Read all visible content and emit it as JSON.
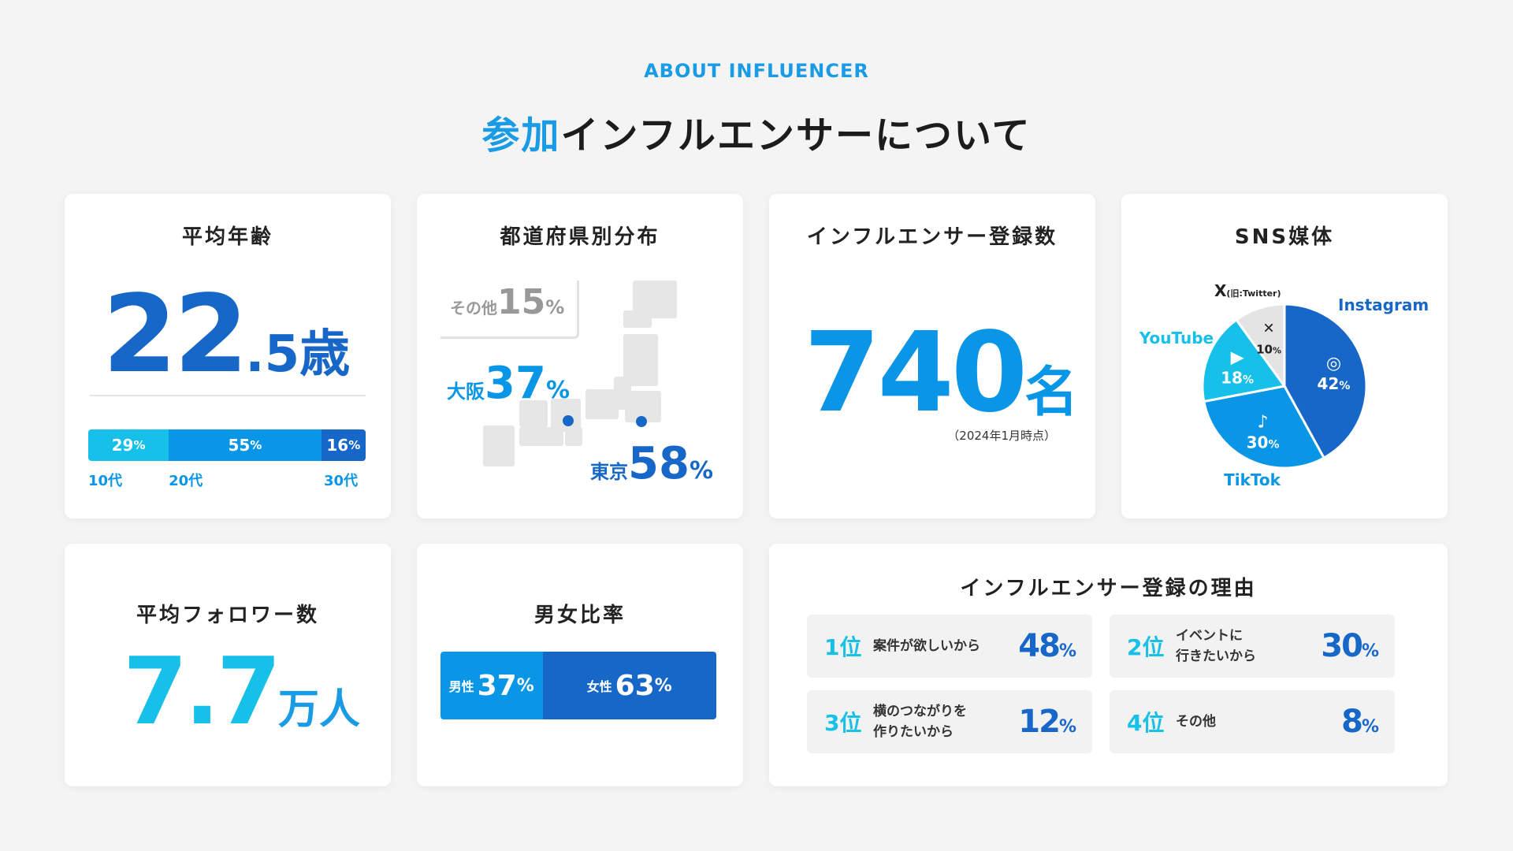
{
  "header": {
    "eyebrow": "ABOUT INFLUENCER",
    "title_accent": "参加",
    "title_rest": "インフルエンサーについて"
  },
  "age_card": {
    "title": "平均年齢",
    "value_int": "22",
    "value_dec": ".5",
    "unit": "歳",
    "segments": [
      {
        "pct": "29",
        "unit": "%",
        "label": "10代",
        "share": 29,
        "color": "#16c0e8"
      },
      {
        "pct": "55",
        "unit": "%",
        "label": "20代",
        "share": 55,
        "color": "#0a96e6"
      },
      {
        "pct": "16",
        "unit": "%",
        "label": "30代",
        "share": 16,
        "color": "#1767c9"
      }
    ]
  },
  "pref_card": {
    "title": "都道府県別分布",
    "other_label": "その他",
    "other_value": "15",
    "osaka_label": "大阪",
    "osaka_value": "37",
    "tokyo_label": "東京",
    "tokyo_value": "58",
    "unit": "%"
  },
  "count_card": {
    "title": "インフルエンサー登録数",
    "value": "740",
    "unit": "名",
    "note": "（2024年1月時点）"
  },
  "sns_card": {
    "title": "SNS媒体",
    "chart_data": {
      "type": "pie",
      "slices": [
        {
          "name": "Instagram",
          "value": 42,
          "icon": "instagram-icon",
          "color": "#1767c9",
          "label_color": "#1767c9"
        },
        {
          "name": "TikTok",
          "value": 30,
          "icon": "tiktok-icon",
          "color": "#0a96e6",
          "label_color": "#0a96e6"
        },
        {
          "name": "YouTube",
          "value": 18,
          "icon": "youtube-icon",
          "color": "#16c0e8",
          "label_color": "#16c0e8"
        },
        {
          "name": "X",
          "value": 10,
          "icon": "x-icon",
          "color": "#e4e4e4",
          "label_color": "#222222"
        }
      ],
      "x_sub": "(旧:Twitter)",
      "unit": "%"
    }
  },
  "follow_card": {
    "title": "平均フォロワー数",
    "value": "7.7",
    "unit": "万人"
  },
  "gender_card": {
    "title": "男女比率",
    "male_label": "男性",
    "male_value": "37",
    "male_share": 37,
    "female_label": "女性",
    "female_value": "63",
    "female_share": 63,
    "unit": "%"
  },
  "reason_card": {
    "title": "インフルエンサー登録の理由",
    "items": [
      {
        "rank": "1位",
        "text": "案件が欲しいから",
        "value": "48",
        "unit": "%"
      },
      {
        "rank": "2位",
        "text": "イベントに\n行きたいから",
        "value": "30",
        "unit": "%"
      },
      {
        "rank": "3位",
        "text": "横のつながりを\n作りたいから",
        "value": "12",
        "unit": "%"
      },
      {
        "rank": "4位",
        "text": "その他",
        "value": "8",
        "unit": "%"
      }
    ]
  }
}
